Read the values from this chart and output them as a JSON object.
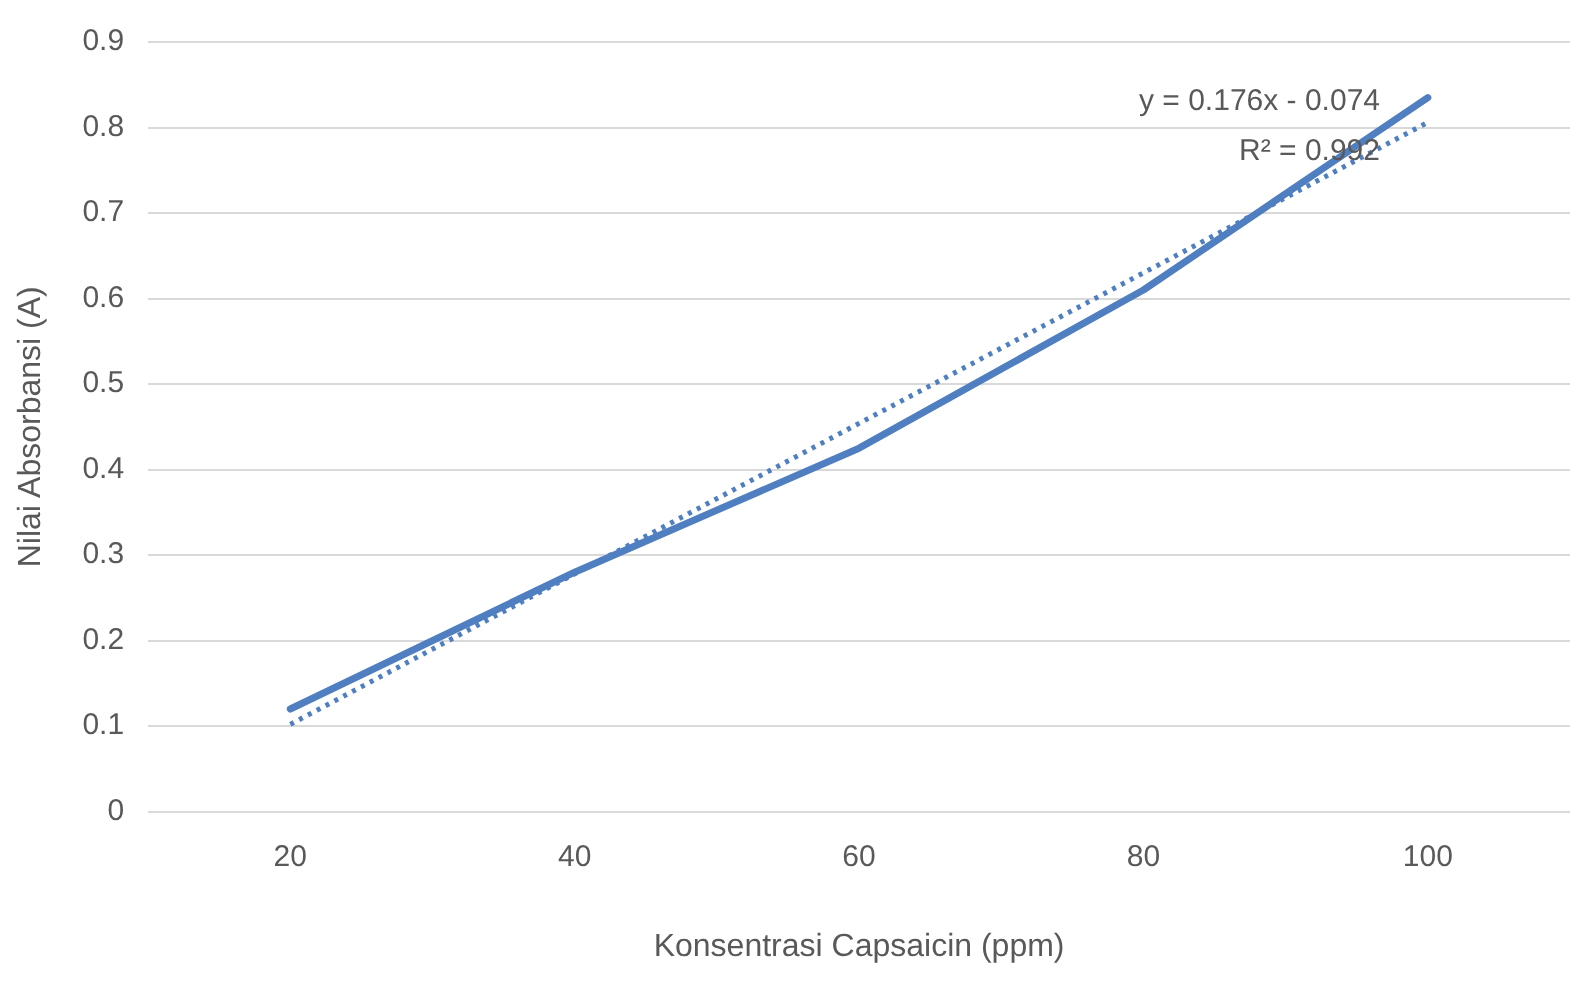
{
  "chart_data": {
    "type": "line",
    "xlabel": "Konsentrasi Capsaicin (ppm)",
    "ylabel": "Nilai Absorbansi (A)",
    "categories": [
      "20",
      "40",
      "60",
      "80",
      "100"
    ],
    "series": [
      {
        "color": "#4f7fc0",
        "values": [
          0.12,
          0.28,
          0.425,
          0.61,
          0.835
        ],
        "line_style": "solid"
      },
      {
        "color": "#4f7fc0",
        "x": [
          "20",
          "40",
          "60",
          "80",
          "100"
        ],
        "values": [
          0.102,
          0.278,
          0.454,
          0.63,
          0.806
        ],
        "line_style": "dotted"
      }
    ],
    "ylim": [
      0,
      0.9
    ],
    "yticks": [
      0,
      0.1,
      0.2,
      0.3,
      0.4,
      0.5,
      0.6,
      0.7,
      0.8,
      0.9
    ],
    "grid": "y",
    "legend": false,
    "marker": "none",
    "annotations": [
      "y = 0.176x - 0.074",
      "R² = 0.992"
    ]
  }
}
